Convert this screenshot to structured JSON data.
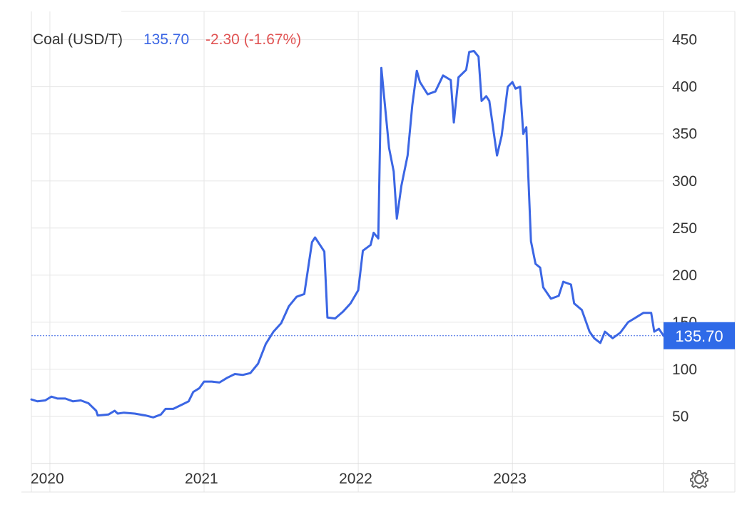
{
  "header": {
    "name": "Coal (USD/T)",
    "price": "135.70",
    "change": "-2.30 (-1.67%)"
  },
  "colors": {
    "line": "#3b66e4",
    "price": "#3b66e4",
    "change": "#e05353",
    "last_label_bg": "#2f6ae8",
    "grid": "#e6e6e6"
  },
  "settings_icon": "gear-icon",
  "last_value_label": "135.70",
  "chart_data": {
    "type": "line",
    "title": "Coal (USD/T)",
    "xlabel": "",
    "ylabel": "",
    "x_ticks": [
      {
        "label": "2020",
        "value": 2020.0
      },
      {
        "label": "2021",
        "value": 2021.0
      },
      {
        "label": "2022",
        "value": 2022.0
      },
      {
        "label": "2023",
        "value": 2023.0
      }
    ],
    "y_ticks": [
      50,
      100,
      150,
      200,
      250,
      300,
      350,
      400,
      450
    ],
    "ylim": [
      0,
      480
    ],
    "xlim": [
      2019.88,
      2023.98
    ],
    "grid": true,
    "axis_side": "right",
    "last_value": 135.7,
    "series": [
      {
        "points": [
          [
            2019.88,
            68
          ],
          [
            2019.92,
            66
          ],
          [
            2019.97,
            67
          ],
          [
            2020.01,
            71
          ],
          [
            2020.05,
            69
          ],
          [
            2020.1,
            69
          ],
          [
            2020.15,
            66
          ],
          [
            2020.2,
            67
          ],
          [
            2020.25,
            64
          ],
          [
            2020.3,
            56
          ],
          [
            2020.31,
            51
          ],
          [
            2020.38,
            52
          ],
          [
            2020.42,
            56
          ],
          [
            2020.44,
            53
          ],
          [
            2020.48,
            54
          ],
          [
            2020.55,
            53
          ],
          [
            2020.62,
            51
          ],
          [
            2020.67,
            49
          ],
          [
            2020.72,
            52
          ],
          [
            2020.75,
            58
          ],
          [
            2020.8,
            58
          ],
          [
            2020.85,
            62
          ],
          [
            2020.9,
            66
          ],
          [
            2020.93,
            76
          ],
          [
            2020.97,
            80
          ],
          [
            2021.0,
            87
          ],
          [
            2021.05,
            87
          ],
          [
            2021.1,
            86
          ],
          [
            2021.15,
            91
          ],
          [
            2021.2,
            95
          ],
          [
            2021.25,
            94
          ],
          [
            2021.3,
            96
          ],
          [
            2021.35,
            106
          ],
          [
            2021.4,
            127
          ],
          [
            2021.45,
            140
          ],
          [
            2021.5,
            149
          ],
          [
            2021.55,
            167
          ],
          [
            2021.6,
            177
          ],
          [
            2021.65,
            180
          ],
          [
            2021.7,
            235
          ],
          [
            2021.72,
            240
          ],
          [
            2021.78,
            225
          ],
          [
            2021.8,
            155
          ],
          [
            2021.85,
            154
          ],
          [
            2021.9,
            161
          ],
          [
            2021.95,
            170
          ],
          [
            2022.0,
            184
          ],
          [
            2022.03,
            226
          ],
          [
            2022.08,
            232
          ],
          [
            2022.1,
            245
          ],
          [
            2022.13,
            239
          ],
          [
            2022.15,
            420
          ],
          [
            2022.2,
            335
          ],
          [
            2022.23,
            310
          ],
          [
            2022.25,
            260
          ],
          [
            2022.28,
            295
          ],
          [
            2022.32,
            327
          ],
          [
            2022.35,
            380
          ],
          [
            2022.38,
            417
          ],
          [
            2022.4,
            405
          ],
          [
            2022.45,
            392
          ],
          [
            2022.5,
            395
          ],
          [
            2022.55,
            412
          ],
          [
            2022.6,
            407
          ],
          [
            2022.62,
            362
          ],
          [
            2022.65,
            410
          ],
          [
            2022.7,
            418
          ],
          [
            2022.72,
            437
          ],
          [
            2022.75,
            438
          ],
          [
            2022.78,
            432
          ],
          [
            2022.8,
            385
          ],
          [
            2022.83,
            390
          ],
          [
            2022.85,
            385
          ],
          [
            2022.9,
            327
          ],
          [
            2022.93,
            348
          ],
          [
            2022.97,
            400
          ],
          [
            2023.0,
            405
          ],
          [
            2023.02,
            398
          ],
          [
            2023.05,
            400
          ],
          [
            2023.07,
            350
          ],
          [
            2023.09,
            357
          ],
          [
            2023.12,
            236
          ],
          [
            2023.15,
            212
          ],
          [
            2023.18,
            208
          ],
          [
            2023.2,
            187
          ],
          [
            2023.25,
            175
          ],
          [
            2023.3,
            178
          ],
          [
            2023.33,
            193
          ],
          [
            2023.38,
            190
          ],
          [
            2023.4,
            170
          ],
          [
            2023.45,
            163
          ],
          [
            2023.5,
            140
          ],
          [
            2023.53,
            133
          ],
          [
            2023.57,
            128
          ],
          [
            2023.6,
            140
          ],
          [
            2023.65,
            133
          ],
          [
            2023.7,
            139
          ],
          [
            2023.75,
            150
          ],
          [
            2023.8,
            155
          ],
          [
            2023.85,
            160
          ],
          [
            2023.9,
            160
          ],
          [
            2023.92,
            140
          ],
          [
            2023.95,
            143
          ],
          [
            2023.98,
            135.7
          ]
        ]
      }
    ]
  }
}
